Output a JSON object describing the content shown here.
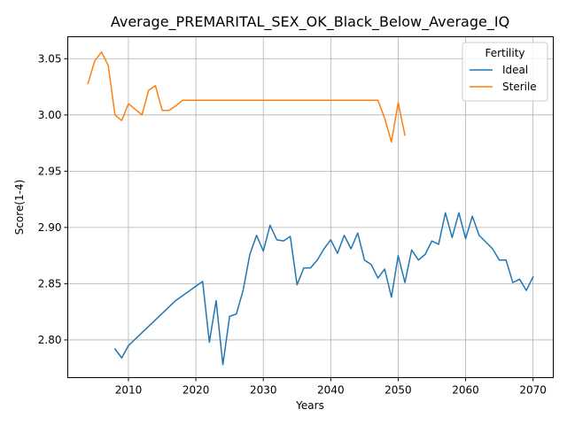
{
  "chart_data": {
    "type": "line",
    "title": "Average_PREMARITAL_SEX_OK_Black_Below_Average_IQ",
    "xlabel": "Years",
    "ylabel": "Score(1-4)",
    "xlim": [
      2001,
      2073
    ],
    "ylim": [
      2.7665,
      3.0695
    ],
    "xticks": [
      2010,
      2020,
      2030,
      2040,
      2050,
      2060,
      2070
    ],
    "yticks": [
      2.8,
      2.85,
      2.9,
      2.95,
      3.0,
      3.05
    ],
    "xtick_labels": [
      "2010",
      "2020",
      "2030",
      "2040",
      "2050",
      "2060",
      "2070"
    ],
    "ytick_labels": [
      "2.80",
      "2.85",
      "2.90",
      "2.95",
      "3.00",
      "3.05"
    ],
    "grid": true,
    "legend": {
      "title": "Fertility",
      "position": "top-right"
    },
    "series": [
      {
        "name": "Ideal",
        "color": "#1f77b4",
        "x": [
          2008,
          2009,
          2010,
          2017,
          2021,
          2022,
          2023,
          2024,
          2025,
          2026,
          2027,
          2028,
          2029,
          2030,
          2031,
          2032,
          2033,
          2034,
          2035,
          2036,
          2037,
          2038,
          2039,
          2040,
          2041,
          2042,
          2043,
          2044,
          2045,
          2046,
          2047,
          2048,
          2049,
          2050,
          2051,
          2052,
          2053,
          2054,
          2055,
          2056,
          2057,
          2058,
          2059,
          2060,
          2061,
          2062,
          2063,
          2064,
          2065,
          2066,
          2067,
          2068,
          2069,
          2070
        ],
        "y": [
          2.792,
          2.784,
          2.795,
          2.835,
          2.852,
          2.798,
          2.835,
          2.778,
          2.821,
          2.823,
          2.844,
          2.876,
          2.893,
          2.879,
          2.902,
          2.889,
          2.888,
          2.892,
          2.849,
          2.864,
          2.864,
          2.871,
          2.881,
          2.889,
          2.877,
          2.893,
          2.881,
          2.895,
          2.871,
          2.867,
          2.855,
          2.863,
          2.838,
          2.875,
          2.851,
          2.88,
          2.871,
          2.876,
          2.888,
          2.885,
          2.913,
          2.891,
          2.913,
          2.89,
          2.91,
          2.893,
          2.887,
          2.881,
          2.871,
          2.871,
          2.851,
          2.854,
          2.844,
          2.856
        ]
      },
      {
        "name": "Sterile",
        "color": "#ff7f0e",
        "x": [
          2004,
          2005,
          2006,
          2007,
          2008,
          2009,
          2010,
          2012,
          2013,
          2014,
          2015,
          2016,
          2017,
          2018,
          2020,
          2025,
          2030,
          2035,
          2040,
          2045,
          2047,
          2048,
          2049,
          2050,
          2051
        ],
        "y": [
          3.028,
          3.048,
          3.056,
          3.044,
          3.0,
          2.995,
          3.01,
          3.0,
          3.022,
          3.026,
          3.004,
          3.004,
          3.008,
          3.013,
          3.013,
          3.013,
          3.013,
          3.013,
          3.013,
          3.013,
          3.013,
          2.997,
          2.976,
          3.011,
          2.982
        ]
      }
    ]
  }
}
